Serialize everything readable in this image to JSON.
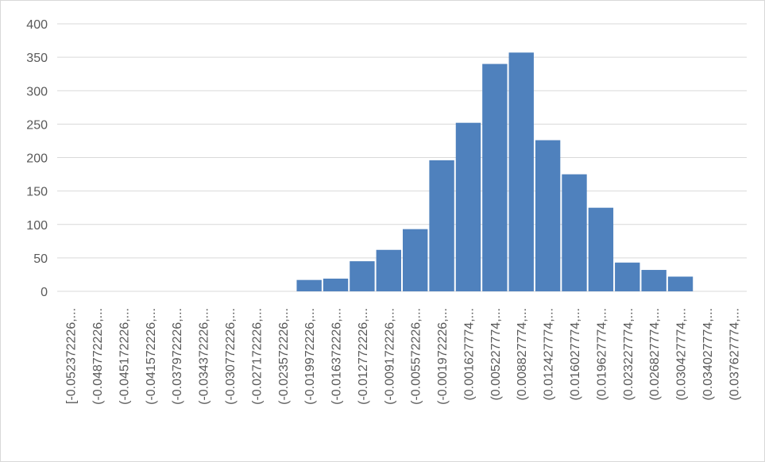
{
  "chart_data": {
    "type": "bar",
    "categories": [
      "[-0.052372226,...",
      "(-0.048772226,...",
      "(-0.045172226,...",
      "(-0.041572226,...",
      "(-0.037972226,...",
      "(-0.034372226,...",
      "(-0.030772226,...",
      "(-0.027172226,...",
      "(-0.023572226,...",
      "(-0.019972226,...",
      "(-0.016372226,...",
      "(-0.012772226,...",
      "(-0.009172226,...",
      "(-0.005572226,...",
      "(-0.001972226,...",
      "(0.001627774,...",
      "(0.005227774,...",
      "(0.008827774,...",
      "(0.012427774,...",
      "(0.016027774,...",
      "(0.019627774,...",
      "(0.023227774,...",
      "(0.026827774,...",
      "(0.030427774,...",
      "(0.034027774,...",
      "(0.037627774,..."
    ],
    "values": [
      0,
      0,
      0,
      0,
      0,
      0,
      0,
      0,
      0,
      17,
      19,
      45,
      62,
      93,
      196,
      252,
      340,
      357,
      226,
      175,
      125,
      43,
      32,
      22,
      0,
      0
    ],
    "color": "#4f81bd",
    "ylim": [
      0,
      400
    ],
    "yticks": [
      0,
      50,
      100,
      150,
      200,
      250,
      300,
      350,
      400
    ],
    "grid": true
  }
}
